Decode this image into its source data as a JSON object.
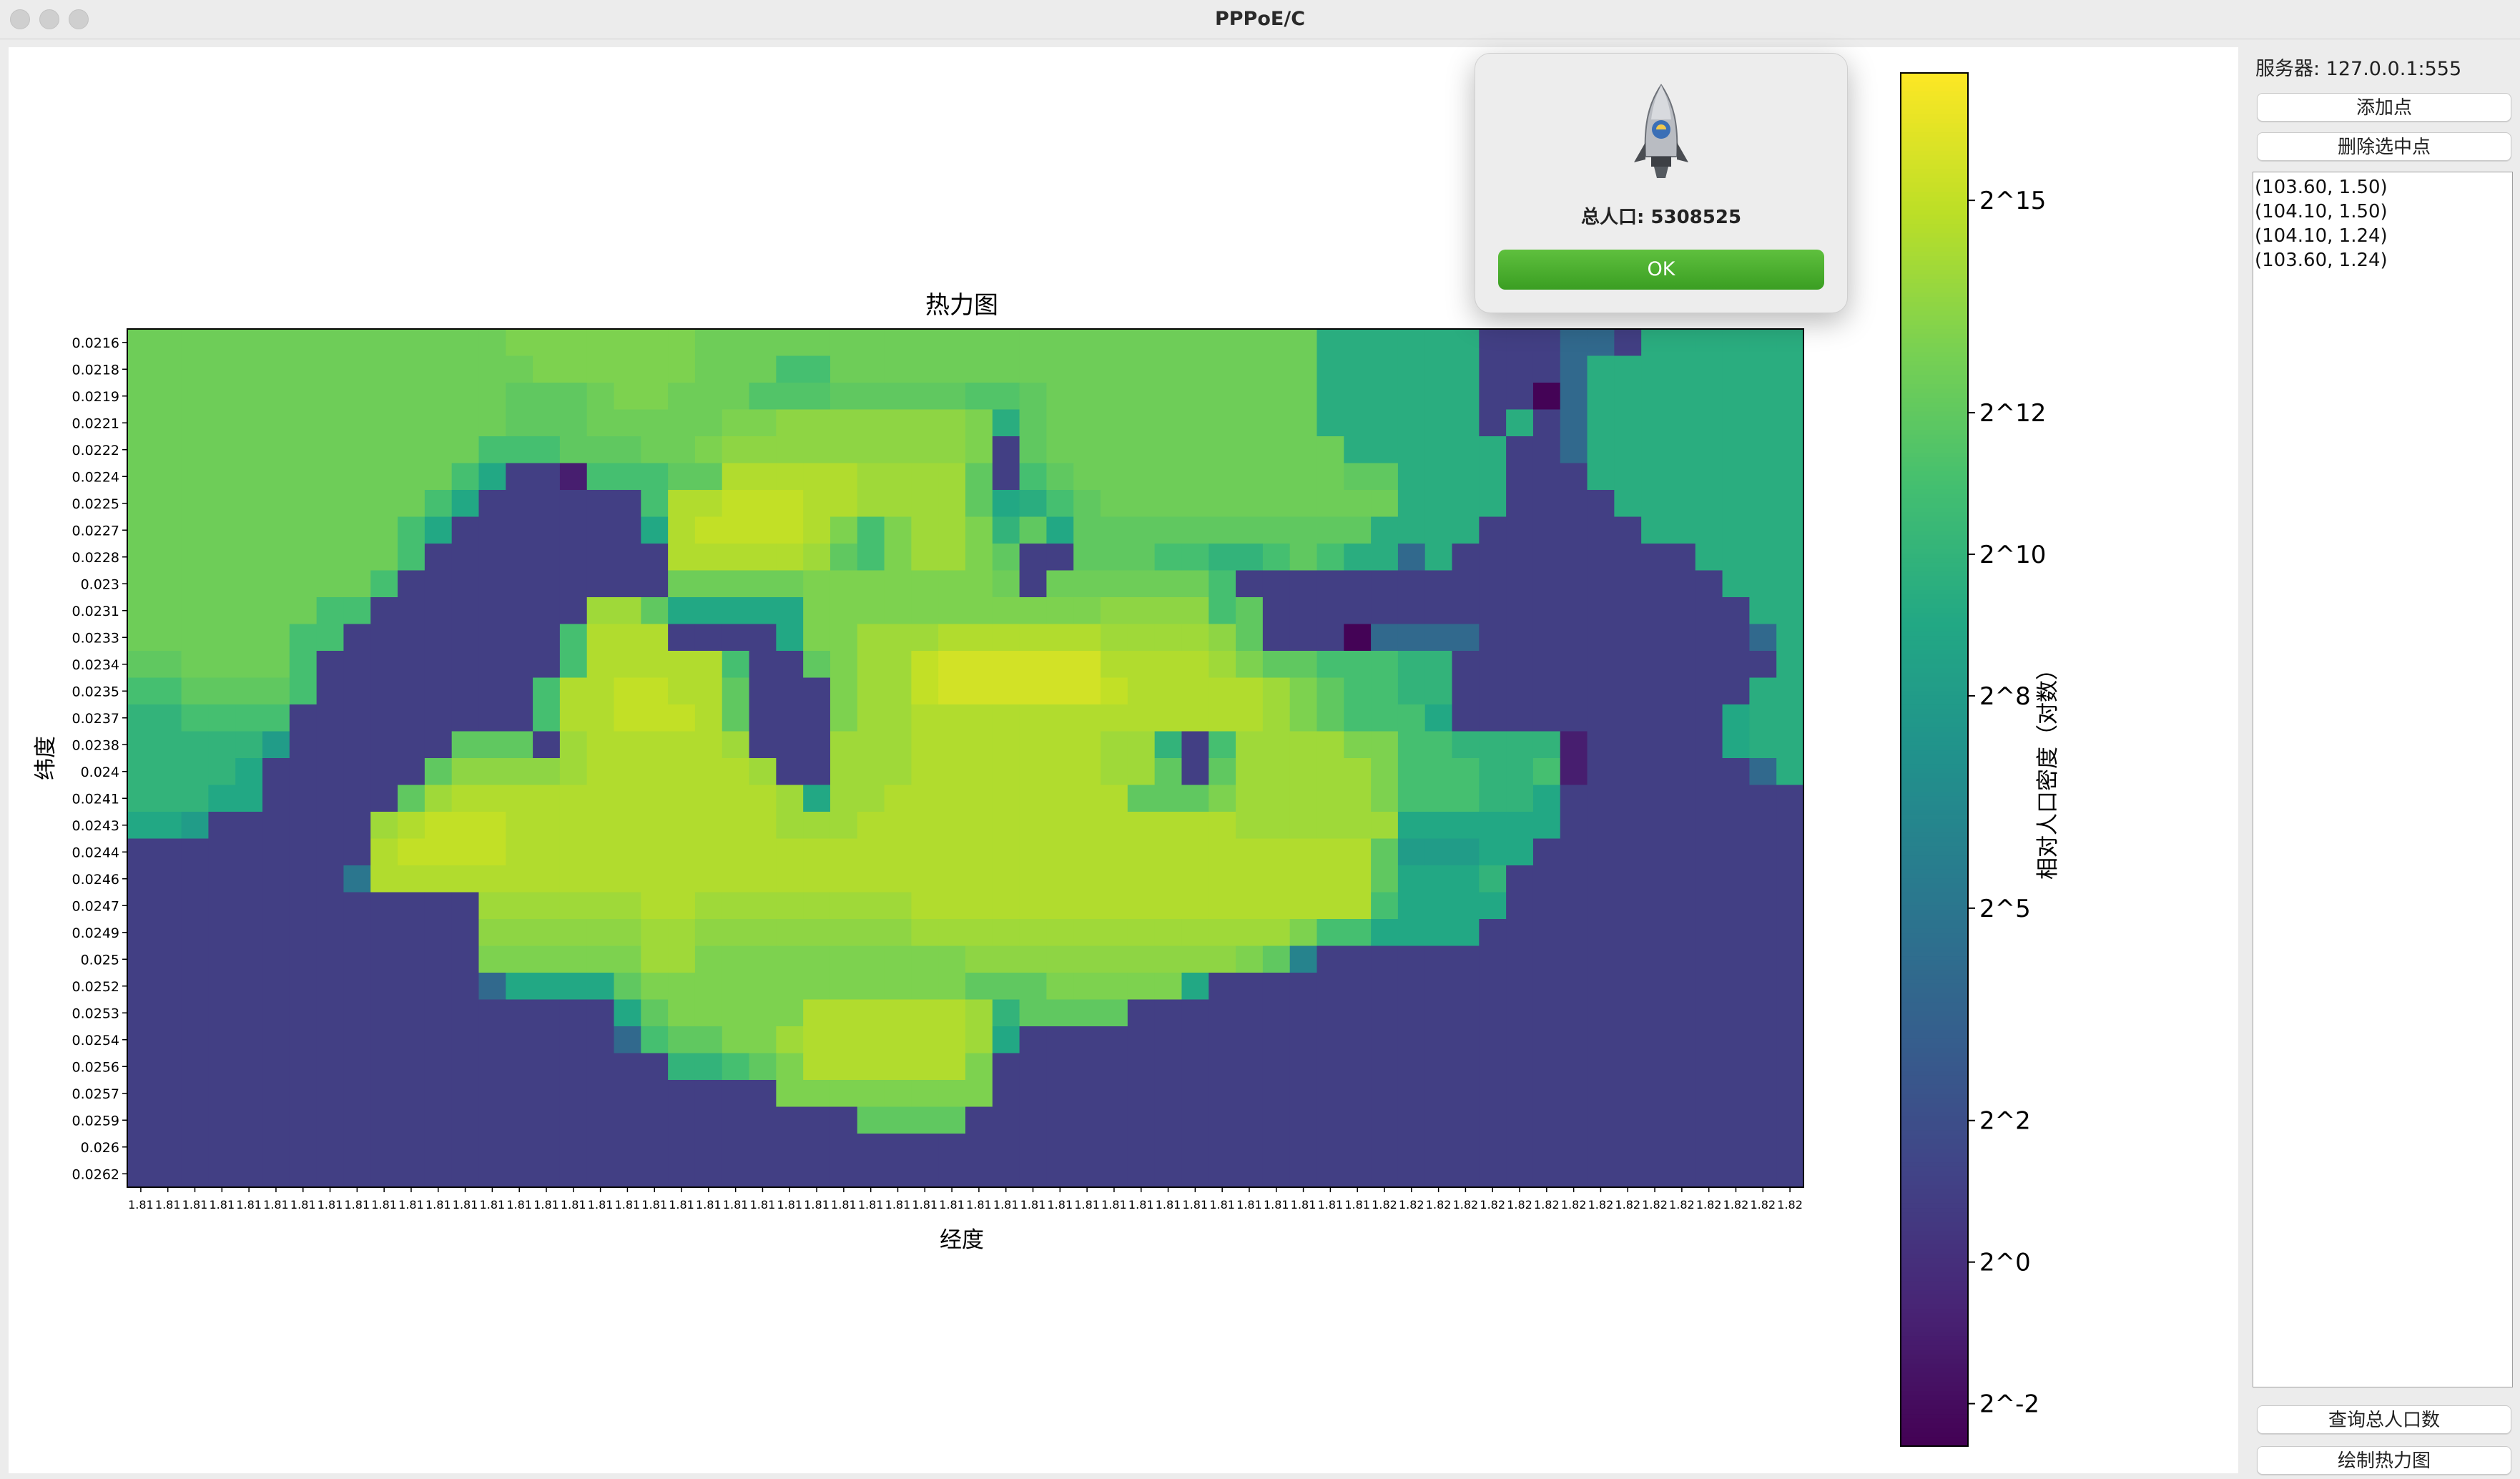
{
  "window": {
    "title": "PPPoE/C"
  },
  "sidebar": {
    "server_label": "服务器: 127.0.0.1:555",
    "add_point_label": "添加点",
    "delete_point_label": "删除选中点",
    "points": [
      "(103.60, 1.50)",
      "(104.10, 1.50)",
      "(104.10, 1.24)",
      "(103.60, 1.24)"
    ],
    "query_population_label": "查询总人口数",
    "draw_heatmap_label": "绘制热力图"
  },
  "dialog": {
    "message": "总人口: 5308525",
    "ok_label": "OK"
  },
  "chart_data": {
    "type": "heatmap",
    "title": "热力图",
    "xlabel": "经度",
    "ylabel": "纬度",
    "colorbar_label": "相对人口密度（对数）",
    "colormap": "viridis",
    "color_scale": "log2",
    "color_range_log2": [
      -2.6,
      16.8
    ],
    "colorbar_ticks": [
      "2^15",
      "2^12",
      "2^10",
      "2^8",
      "2^5",
      "2^2",
      "2^0",
      "2^-2"
    ],
    "colorbar_tick_values_log2": [
      15,
      12,
      10,
      8,
      5,
      2,
      0,
      -2
    ],
    "y_tick_labels": [
      "0.0216",
      "0.0218",
      "0.0219",
      "0.0221",
      "0.0222",
      "0.0224",
      "0.0225",
      "0.0227",
      "0.0228",
      "0.023",
      "0.0231",
      "0.0233",
      "0.0234",
      "0.0235",
      "0.0237",
      "0.0238",
      "0.024",
      "0.0241",
      "0.0243",
      "0.0244",
      "0.0246",
      "0.0247",
      "0.0249",
      "0.025",
      "0.0252",
      "0.0253",
      "0.0254",
      "0.0256",
      "0.0257",
      "0.0259",
      "0.026",
      "0.0262"
    ],
    "x_tick_labels": [
      "1.81",
      "1.81",
      "1.81",
      "1.81",
      "1.81",
      "1.81",
      "1.81",
      "1.81",
      "1.81",
      "1.81",
      "1.81",
      "1.81",
      "1.81",
      "1.81",
      "1.81",
      "1.81",
      "1.81",
      "1.81",
      "1.81",
      "1.81",
      "1.81",
      "1.81",
      "1.81",
      "1.81",
      "1.81",
      "1.81",
      "1.81",
      "1.81",
      "1.81",
      "1.81",
      "1.81",
      "1.81",
      "1.81",
      "1.81",
      "1.81",
      "1.81",
      "1.81",
      "1.81",
      "1.81",
      "1.81",
      "1.81",
      "1.81",
      "1.81",
      "1.81",
      "1.81",
      "1.81",
      "1.82",
      "1.82",
      "1.82",
      "1.82",
      "1.82",
      "1.82",
      "1.82",
      "1.82",
      "1.82",
      "1.82",
      "1.82",
      "1.82",
      "1.82",
      "1.82",
      "1.82",
      "1.82"
    ],
    "nx": 62,
    "ny": 32,
    "values_log2": [
      "12.5 12.5 12.5 12.5 12.5 12.5 12.5 12.5 12.5 12.5 12.5 12.5 12.5 12.5 13 13 13 13 13 13 13 12.5 12.5 12.5 12.5 12.5 12.5 12.5 12.5 12.5 12.5 12.5 12.5 12.5 12.5 12.5 12.5 12.5 12.5 12.5 12.5 12.5 12.5 12.5 9.5 9.5 9.5 9.5 9.5 9.5 1 1 1 4 4 1 9.5 9.5 9.5 9.5 9.5 9.5",
      "12.5 12.5 12.5 12.5 12.5 12.5 12.5 12.5 12.5 12.5 12.5 12.5 12.5 12.5 12.5 13 13 13 13 13 13 12.5 12.5 12.5 11 11 12.5 12.5 12.5 12.5 12.5 12.5 12.5 12.5 12.5 12.5 12.5 12.5 12.5 12.5 12.5 12.5 12.5 12.5 9.5 9.5 9.5 9.5 9.5 9.5 1 1 1 4 9.5 9.5 9.5 9.5 9.5 9.5 9.5 9.5",
      "12.5 12.5 12.5 12.5 12.5 12.5 12.5 12.5 12.5 12.5 12.5 12.5 12.5 12.5 12 12 12 12.5 13 13 12.5 12.5 12.5 11.5 11.5 11.5 12 12 12 12 12 11.5 11.5 12 12.5 12.5 12.5 12.5 12.5 12.5 12.5 12.5 12.5 12.5 9.5 9.5 9.5 9.5 9.5 9.5 1 1 -2.5 4 9.5 9.5 9.5 9.5 9.5 9.5 9.5 9.5",
      "12.5 12.5 12.5 12.5 12.5 12.5 12.5 12.5 12.5 12.5 12.5 12.5 12.5 12.5 12 12 12 12.5 12.5 12.5 12.5 12.5 13 13 13.5 13.5 13.5 13.5 13.5 13.5 13.5 13 9.5 12 12.5 12.5 12.5 12.5 12.5 12.5 12.5 12.5 12.5 12.5 9.5 9.5 9.5 9.5 9.5 9.5 1 9.5 1 4 9.5 9.5 9.5 9.5 9.5 9.5 9.5 9.5",
      "12.5 12.5 12.5 12.5 12.5 12.5 12.5 12.5 12.5 12.5 12.5 12.5 12.5 11 11 11 12 12 12 12.5 12.5 13 13.5 13.5 13.5 13.5 13.5 13.5 13.5 13.5 13.5 13 1 12 12.5 12.5 12.5 12.5 12.5 12.5 12.5 12.5 12.5 12.5 12.5 9.5 9.5 9.5 9.5 9.5 9.5 1 1 4 9.5 9.5 9.5 9.5 9.5 9.5 9.5 9.5",
      "12.5 12.5 12.5 12.5 12.5 12.5 12.5 12.5 12.5 12.5 12.5 12.5 11 9 1 1 -1 11 11 11 12 12 14.5 14.5 14.5 14.5 14.5 14 14 14 14 12 1 11 12 12.5 12.5 12.5 12.5 12.5 12.5 12.5 12.5 12.5 12.5 12 12 9.5 9.5 9.5 9.5 1 1 1 9.5 9.5 9.5 9.5 9.5 9.5 9.5 9.5",
      "12.5 12.5 12.5 12.5 12.5 12.5 12.5 12.5 12.5 12.5 12.5 11 9 1 1 1 1 1 1 11 14.5 14.5 15 15 15 14.5 14.5 14 14 14 14 12 9 9.5 11 12 12.5 12.5 12.5 12.5 12.5 12.5 12.5 12.5 12.5 12.5 12.5 9.5 9.5 9.5 9.5 1 1 1 1 9.5 9.5 9.5 9.5 9.5 9.5 9.5",
      "12.5 12.5 12.5 12.5 12.5 12.5 12.5 12.5 12.5 12.5 11 9 1 1 1 1 1 1 1 9 14.5 15 15 15 15 14.5 13 11 13 14 14 13 10 12 9 12 12 12 12 12 12 12 12 12 12 12 9.5 9.5 9.5 9.5 1 1 1 1 1 1 9.5 9.5 9.5 9.5 9.5 9.5",
      "12.5 12.5 12.5 12.5 12.5 12.5 12.5 12.5 12.5 12.5 11 1 1 1 1 1 1 1 1 1 14.5 14.5 14.5 14.5 14.5 14 12 11 13 14 14 13 12 1 1 12 12 12 11 11 10 10 11 12 11 9.5 9.5 4 9.5 1 1 1 1 1 1 1 1 1 9.5 9.5 9.5 9.5",
      "12.5 12.5 12.5 12.5 12.5 12.5 12.5 12.5 12.5 11 1 1 1 1 1 1 1 1 1 1 12.5 12.5 12.5 12.5 12.5 13 13 13 13 13 13 13 12.5 1 12.5 12.5 12.5 12.5 12.5 12.5 11 1 1 1 1 1 1 1 1 1 1 1 1 1 1 1 1 1 1 9.5 9.5 9.5",
      "12.5 12.5 12.5 12.5 12.5 12.5 12.5 11 11 1 1 1 1 1 1 1 1 14 14 12 9 9 9 9 9 13 13 13 13 13 13 13 13 13 13 13 13.5 13.5 13.5 13.5 11 12 1 1 1 1 1 1 1 1 1 1 1 1 1 1 1 1 1 1 9.5 9.5",
      "12.5 12.5 12.5 12.5 12.5 12.5 11 11 1 1 1 1 1 1 1 1 11 14.5 14.5 14.5 1 1 1 1 9 13 13 14 14 14 14.5 14.5 14.5 14.5 14.5 14.5 14 14 14 14 13.5 12 1 1 1 -2.5 4 4 4 4 1 1 1 1 1 1 1 1 1 1 4 9.5",
      "12 12 12.5 12.5 12.5 12.5 11 1 1 1 1 1 1 1 1 1 11 14.5 14.5 14.5 14.5 14.5 11 1 1 12 13 14 14 15 15.5 15.5 15.5 15.5 15.5 15.5 14.5 14.5 14.5 14.5 14 13 12 12 11 11 11 10 10 1 1 1 1 1 1 1 1 1 1 1 1 9.5",
      "11 11 12 12 12 12 11 1 1 1 1 1 1 1 1 11 14.5 14.5 15 15 14.5 14.5 12 1 1 1 13 14 14 15 15.5 15.5 15.5 15.5 15.5 15.5 15 14.5 14.5 14.5 14.5 14.5 14 13 12 11 11 10 10 1 1 1 1 1 1 1 1 1 1 1 9.5 9.5",
      "10 10 11 11 11 11 1 1 1 1 1 1 1 1 1 11 14.5 14.5 15 15 15 14.5 12 1 1 1 13 14 14 14.5 14.5 14.5 14.5 14.5 14.5 14.5 14.5 14.5 14.5 14.5 14.5 14.5 14 13 12 11 11 11 9 1 1 1 1 1 1 1 1 1 1 9 9.5 9.5",
      "10 10 10 10 10 8 1 1 1 1 1 1 12 12 12 1 14 14.5 14.5 14.5 14.5 14.5 14 1 1 1 14 14 14 14.5 14.5 14.5 14.5 14.5 14.5 14.5 14 14 10 1 11 14 14 14 14 13 13 11 11 10 10 10 10 -1 1 1 1 1 1 9 9.5 9.5",
      "10 10 10 10 9 1 1 1 1 1 1 12 13.5 13.5 13.5 13.5 14 14.5 14.5 14.5 14.5 14.5 14.5 14 1 1 14 14 14 14.5 14.5 14.5 14.5 14.5 14.5 14.5 14 14 12 1 12 14 14 14 14 14 13 11 11 11 10 10 11 -1 1 1 1 1 1 1 4 9.5",
      "10 10 10 9 9 1 1 1 1 1 12 14 14.5 14.5 14.5 14.5 14.5 14.5 14.5 14.5 14.5 14.5 14.5 14.5 14 9 14 14 14.5 14.5 14.5 14.5 14.5 14.5 14.5 14.5 14.5 12 12 12 13 14 14 14 14 14 13 11 11 11 10 10 9 1 1 1 1 1 1 1 1 1",
      "9 9 8 1 1 1 1 1 1 14 14.5 15 15 15 14.5 14.5 14.5 14.5 14.5 14.5 14.5 14.5 14.5 14.5 14 14 14 14.5 14.5 14.5 14.5 14.5 14.5 14.5 14.5 14.5 14.5 14.5 14.5 14.5 14.5 14 14 14 14 14 14 9 9 9 9 9 9 1 1 1 1 1 1 1 1 1",
      "1 1 1 1 1 1 1 1 1 14.5 15 15 15 15 14.5 14.5 14.5 14.5 14.5 14.5 14.5 14.5 14.5 14.5 14.5 14.5 14.5 14.5 14.5 14.5 14.5 14.5 14.5 14.5 14.5 14.5 14.5 14.5 14.5 14.5 14.5 14.5 14.5 14.5 14.5 14.5 12 8 8 8 9 9 1 1 1 1 1 1 1 1 1 1",
      "1 1 1 1 1 1 1 1 5 14.5 14.5 14.5 14.5 14.5 14.5 14.5 14.5 14.5 14.5 14.5 14.5 14.5 14.5 14.5 14.5 14.5 14.5 14.5 14.5 14.5 14.5 14.5 14.5 14.5 14.5 14.5 14.5 14.5 14.5 14.5 14.5 14.5 14.5 14.5 14.5 14.5 12 9 9 9 10 1 1 1 1 1 1 1 1 1 1 1",
      "1 1 1 1 1 1 1 1 1 1 1 1 1 14 14 14 14 14 14 14.5 14.5 14 14 14 14 14 14 14 14 14.5 14.5 14.5 14.5 14.5 14.5 14.5 14.5 14.5 14.5 14.5 14.5 14.5 14.5 14.5 14.5 14.5 11 9 9 9 9 1 1 1 1 1 1 1 1 1 1 1",
      "1 1 1 1 1 1 1 1 1 1 1 1 1 13.5 13.5 13.5 13.5 13.5 13.5 14 14 13.5 13.5 13.5 13.5 13.5 13.5 13.5 13.5 14 14 14 14 14 14 14 14 14 14 14 14 14 14 13 11 11 9 9 9 9 1 1 1 1 1 1 1 1 1 1 1 1",
      "1 1 1 1 1 1 1 1 1 1 1 1 1 13 13 13 13 13 13 14 14 13 13 13 13 13 13 13 13 13 13 13.5 13.5 13.5 13.5 13.5 13.5 13.5 13.5 13.5 13.5 13 12 6 1 1 1 1 1 1 1 1 1 1 1 1 1 1 1 1 1 1",
      "1 1 1 1 1 1 1 1 1 1 1 1 1 4 9 9 9 9 12 13 13 13 13 13 13 13 13 13 13 13 13 12 12 12 13 13 13 13 13 9 1 1 1 1 1 1 1 1 1 1 1 1 1 1 1 1 1 1 1 1 1 1",
      "1 1 1 1 1 1 1 1 1 1 1 1 1 1 1 1 1 1 9 12 13 13 13 13 13 14.5 14.5 14.5 14.5 14.5 14.5 14 10 12 12 12 12 1 1 1 1 1 1 1 1 1 1 1 1 1 1 1 1 1 1 1 1 1 1 1 1 1",
      "1 1 1 1 1 1 1 1 1 1 1 1 1 1 1 1 1 1 4 11 12 12 13 13 14 14.5 14.5 14.5 14.5 14.5 14.5 14 9 1 1 1 1 1 1 1 1 1 1 1 1 1 1 1 1 1 1 1 1 1 1 1 1 1 1 1 1 1",
      "1 1 1 1 1 1 1 1 1 1 1 1 1 1 1 1 1 1 1 1 10 10 11 12 13 14.5 14.5 14.5 14.5 14.5 14.5 13 1 1 1 1 1 1 1 1 1 1 1 1 1 1 1 1 1 1 1 1 1 1 1 1 1 1 1 1 1 1",
      "1 1 1 1 1 1 1 1 1 1 1 1 1 1 1 1 1 1 1 1 1 1 1 1 13 13 13 13 13 13 13 13 1 1 1 1 1 1 1 1 1 1 1 1 1 1 1 1 1 1 1 1 1 1 1 1 1 1 1 1 1 1",
      "1 1 1 1 1 1 1 1 1 1 1 1 1 1 1 1 1 1 1 1 1 1 1 1 1 1 1 12 12 12 12 1 1 1 1 1 1 1 1 1 1 1 1 1 1 1 1 1 1 1 1 1 1 1 1 1 1 1 1 1 1 1",
      "1 1 1 1 1 1 1 1 1 1 1 1 1 1 1 1 1 1 1 1 1 1 1 1 1 1 1 1 1 1 1 1 1 1 1 1 1 1 1 1 1 1 1 1 1 1 1 1 1 1 1 1 1 1 1 1 1 1 1 1 1 1",
      "1 1 1 1 1 1 1 1 1 1 1 1 1 1 1 1 1 1 1 1 1 1 1 1 1 1 1 1 1 1 1 1 1 1 1 1 1 1 1 1 1 1 1 1 1 1 1 1 1 1 1 1 1 1 1 1 1 1 1 1 1 1"
    ]
  }
}
